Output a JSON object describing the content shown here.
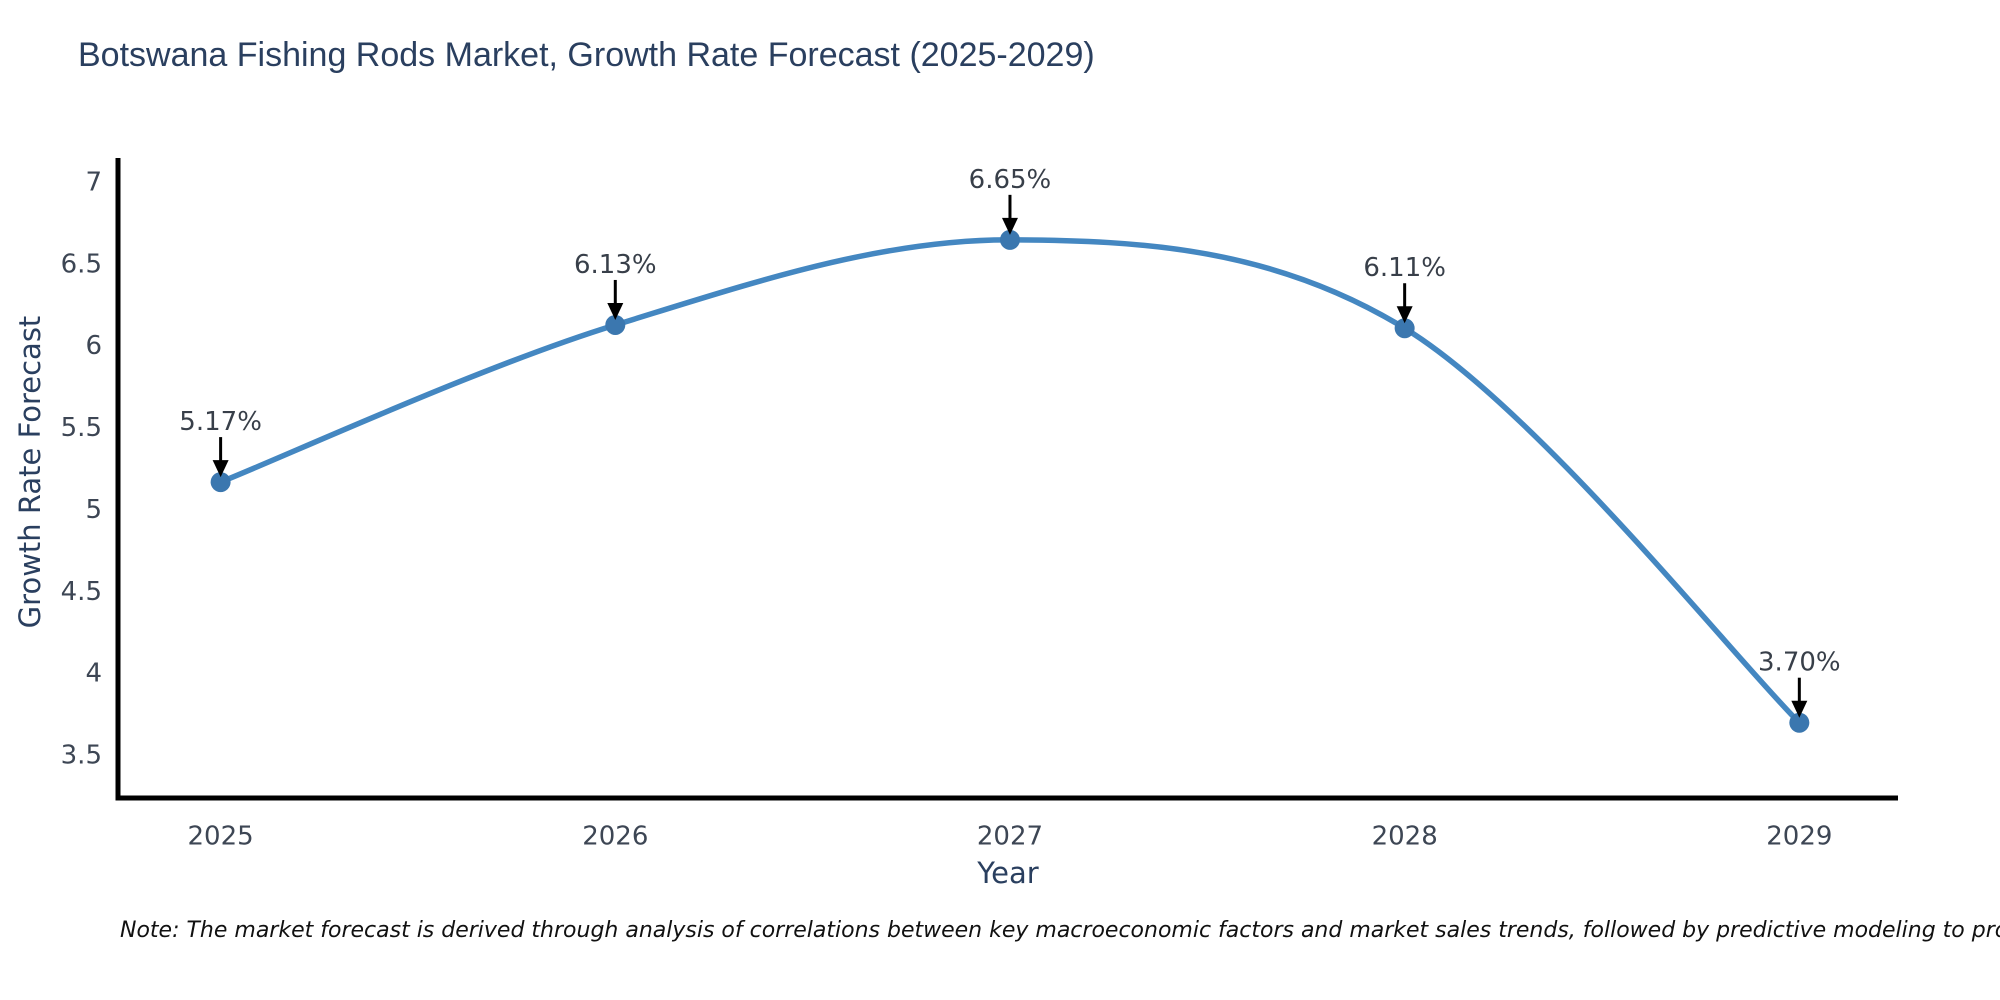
{
  "title": "Botswana Fishing Rods Market, Growth Rate Forecast (2025-2029)",
  "note": "Note: The market forecast is derived through analysis of correlations between key macroeconomic factors and market sales trends, followed by predictive modeling to project future sales",
  "chart_data": {
    "type": "line",
    "line_shape": "spline",
    "grid": false,
    "legend": "none",
    "title": "Botswana Fishing Rods Market, Growth Rate Forecast (2025-2029)",
    "xlabel": "Year",
    "ylabel": "Growth Rate Forecast",
    "x": [
      2025,
      2026,
      2027,
      2028,
      2029
    ],
    "values": [
      5.17,
      6.13,
      6.65,
      6.11,
      3.7
    ],
    "point_labels": [
      "5.17%",
      "6.13%",
      "6.65%",
      "6.11%",
      "3.70%"
    ],
    "x_tick_labels": [
      "2025",
      "2026",
      "2027",
      "2028",
      "2029"
    ],
    "y_ticks": [
      3.5,
      4,
      4.5,
      5,
      5.5,
      6,
      6.5,
      7
    ],
    "y_tick_labels": [
      "3.5",
      "4",
      "4.5",
      "5",
      "5.5",
      "6",
      "6.5",
      "7"
    ],
    "xlim": [
      2024.74,
      2029.25
    ],
    "ylim": [
      3.24,
      7.15
    ],
    "colors": {
      "line": "#4487c1",
      "marker": "#3b77af",
      "axis": "#000000",
      "tick_label": "#3d4654",
      "axis_title": "#2a3f5f",
      "chart_title": "#2a3f5f",
      "annotation_text": "#383f49",
      "annotation_arrow": "#000000",
      "background": "#ffffff"
    }
  }
}
